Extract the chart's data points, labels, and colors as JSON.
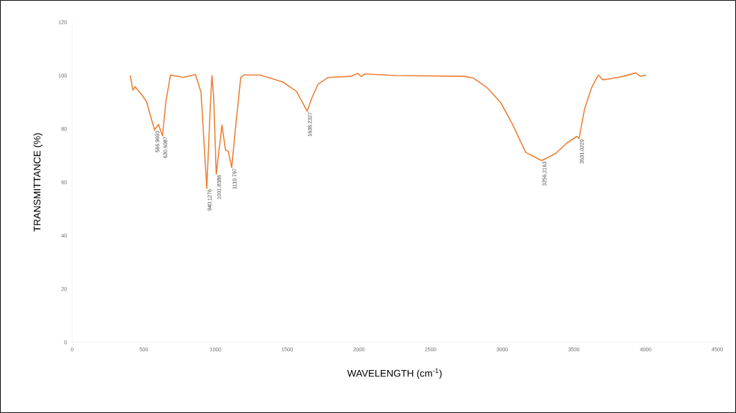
{
  "chart_data": {
    "type": "line",
    "xlabel": "WAVELENGTH (cm$^{-1}$)",
    "ylabel": "TRANSMITTANCE (%)",
    "xlim": [
      0,
      4500
    ],
    "ylim": [
      0,
      120
    ],
    "xticks": [
      0,
      500,
      1000,
      1500,
      2000,
      2500,
      3000,
      3500,
      4000,
      4500
    ],
    "yticks": [
      0,
      20,
      40,
      60,
      80,
      100,
      120
    ],
    "color": "#ed7d31",
    "x": [
      405,
      424,
      440,
      496,
      519,
      551,
      575,
      602,
      630,
      654,
      686,
      773,
      860,
      899,
      939,
      963,
      975,
      987,
      1005,
      1045,
      1070,
      1089,
      1113,
      1137,
      1176,
      1200,
      1311,
      1469,
      1564,
      1612,
      1639,
      1675,
      1715,
      1786,
      1944,
      1992,
      2016,
      2040,
      2261,
      2736,
      2800,
      2895,
      2990,
      3069,
      3164,
      3275,
      3370,
      3449,
      3520,
      3536,
      3575,
      3623,
      3670,
      3702,
      3766,
      3845,
      3932,
      3964,
      4003
    ],
    "values": [
      100,
      94.5,
      95.8,
      92,
      90.2,
      84,
      79.6,
      81.7,
      77.4,
      90.2,
      100.2,
      99.3,
      100.4,
      93.7,
      57.7,
      87.6,
      100,
      92,
      63,
      81.4,
      72,
      71.6,
      65.5,
      79,
      99.3,
      100.2,
      100.2,
      97.6,
      94.1,
      89.4,
      86.6,
      92,
      96.7,
      99.3,
      99.7,
      100.8,
      99.6,
      100.6,
      100,
      99.7,
      99,
      95.4,
      89.8,
      82,
      71.2,
      68.1,
      70.7,
      74.6,
      77.2,
      76.4,
      87.6,
      95.4,
      100.2,
      98.4,
      98.9,
      99.7,
      101,
      99.7,
      100.2
    ],
    "annotations": [
      {
        "text": "566.9693",
        "x": 575,
        "y": 79.6
      },
      {
        "text": "630.6087",
        "x": 630,
        "y": 77.4
      },
      {
        "text": "940.1276",
        "x": 939,
        "y": 57.7
      },
      {
        "text": "1001.8386",
        "x": 1005,
        "y": 63
      },
      {
        "text": "1110.797",
        "x": 1113,
        "y": 65.5
      },
      {
        "text": "1638.2327",
        "x": 1639,
        "y": 86.6
      },
      {
        "text": "3256.2163",
        "x": 3275,
        "y": 68.1
      },
      {
        "text": "3531.0229",
        "x": 3536,
        "y": 76.4
      }
    ]
  }
}
